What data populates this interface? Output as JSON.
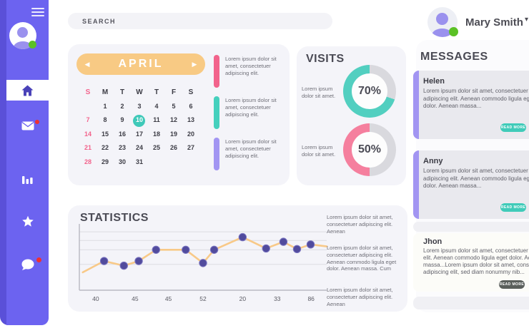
{
  "topbar": {
    "search_placeholder": "SEARCH",
    "user_name": "Mary Smith",
    "user_caret": "▾"
  },
  "sidebar": {
    "items": [
      {
        "id": "home",
        "icon": "home-icon",
        "active": true,
        "badge": false
      },
      {
        "id": "mail",
        "icon": "mail-icon",
        "active": false,
        "badge": true
      },
      {
        "id": "stats",
        "icon": "bar-chart-icon",
        "active": false,
        "badge": false
      },
      {
        "id": "star",
        "icon": "star-icon",
        "active": false,
        "badge": false
      },
      {
        "id": "chat",
        "icon": "chat-icon",
        "active": false,
        "badge": true
      }
    ],
    "colors": {
      "rail": "#5a50d8",
      "panel": "#6c63f0",
      "active_bg": "#ffffff",
      "badge": "#f03030",
      "status": "#5bc125"
    }
  },
  "calendar": {
    "month": "APRIL",
    "prev_icon": "◀",
    "next_icon": "▶",
    "header_color": "#f8ca84",
    "day_headers": [
      "S",
      "M",
      "T",
      "W",
      "T",
      "F",
      "S"
    ],
    "weeks": [
      [
        "",
        "1",
        "2",
        "3",
        "4",
        "5",
        "6"
      ],
      [
        "7",
        "8",
        "9",
        "10",
        "11",
        "12",
        "13"
      ],
      [
        "14",
        "15",
        "16",
        "17",
        "18",
        "19",
        "20"
      ],
      [
        "21",
        "22",
        "23",
        "24",
        "25",
        "26",
        "27"
      ],
      [
        "28",
        "29",
        "30",
        "31",
        "",
        "",
        ""
      ]
    ],
    "selected_date": "10",
    "selected_color": "#3fc9b9",
    "sunday_color": "#f2638c",
    "events": [
      {
        "color": "#f2638c",
        "text": "Lorem ipsum dolor sit amet, consectetuer adipiscing elit."
      },
      {
        "color": "#45d0bd",
        "text": "Lorem ipsum dolor sit amet, consectetuer adipiscing elit."
      },
      {
        "color": "#a295f2",
        "text": "Lorem ipsum dolor sit amet, consectetuer adipiscing elit."
      }
    ]
  },
  "visits": {
    "title": "VISITS",
    "gauges": [
      {
        "value": 70,
        "display": "70%",
        "color": "#52cfc0",
        "track": "#d9d9de",
        "label": "Lorem ipsum dolor sit amet."
      },
      {
        "value": 50,
        "display": "50%",
        "color": "#f57f9e",
        "track": "#d9d9de",
        "label": "Lorem ipsum dolor sit amet."
      }
    ]
  },
  "statistics": {
    "title": "STATISTICS",
    "notes": [
      "Lorem ipsum dolor sit amet, consectetuer adipiscing elit. Aenean",
      "Lorem ipsum dolor sit amet, consectetuer adipiscing elit. Aenean commodo ligula eget dolor. Aenean massa. Cum",
      "Lorem ipsum dolor sit amet, consectetuer adipiscing elit. Aenean"
    ]
  },
  "chart_data": {
    "type": "line",
    "title": "STATISTICS",
    "xlabel": "",
    "ylabel": "",
    "ylim": [
      0,
      100
    ],
    "grid": true,
    "gridline_values": [
      88,
      75,
      61,
      39
    ],
    "x_tick_labels": [
      "40",
      "45",
      "45",
      "52",
      "20",
      "33",
      "86"
    ],
    "x_tick_positions": [
      6.6,
      22.5,
      36,
      50,
      66,
      80,
      93.7
    ],
    "line_color": "#f8c988",
    "dot_color": "#514b9d",
    "points": [
      {
        "x": 1.4,
        "y": 27,
        "dot": false
      },
      {
        "x": 10,
        "y": 44,
        "dot": true
      },
      {
        "x": 18,
        "y": 37,
        "dot": true
      },
      {
        "x": 24,
        "y": 44,
        "dot": true
      },
      {
        "x": 31,
        "y": 61,
        "dot": true
      },
      {
        "x": 43,
        "y": 61,
        "dot": true
      },
      {
        "x": 50,
        "y": 41,
        "dot": true
      },
      {
        "x": 54.5,
        "y": 61,
        "dot": true
      },
      {
        "x": 66,
        "y": 80,
        "dot": true
      },
      {
        "x": 75.5,
        "y": 63,
        "dot": true
      },
      {
        "x": 82.5,
        "y": 73,
        "dot": true
      },
      {
        "x": 88,
        "y": 62,
        "dot": true
      },
      {
        "x": 93.5,
        "y": 69,
        "dot": true
      },
      {
        "x": 100,
        "y": 66,
        "dot": false
      }
    ]
  },
  "messages": {
    "title": "MESSAGES",
    "cards": [
      {
        "name": "Helen",
        "body": "Lorem ipsum dolor sit amet, consectetuer adipiscing elit. Aenean commodo ligula eget dolor. Aenean massa...",
        "button": "READ MORE",
        "accent_bar": true,
        "bar_color": "#a295f2",
        "bg": "#e9e9ee",
        "button_color": "#40cbb9"
      },
      {
        "name": "Anny",
        "body": "Lorem ipsum dolor sit amet, consectetuer adipiscing elit. Aenean commodo ligula eget dolor. Aenean massa...",
        "button": "READ MORE",
        "accent_bar": true,
        "bar_color": "#a295f2",
        "bg": "#e9e9ee",
        "button_color": "#40cbb9"
      },
      {
        "name": "Jhon",
        "body": "Lorem ipsum dolor sit amet, consectetuer adipiscing elit. Aenean commodo ligula eget dolor. Aenean massa...Lorem ipsum dolor sit amet, consectetuer adipiscing elit, sed diam nonummy nib...",
        "button": "READ MORE",
        "accent_bar": false,
        "bar_color": "",
        "bg": "#fcfcf8",
        "button_color": "#5a5f5c"
      }
    ]
  }
}
